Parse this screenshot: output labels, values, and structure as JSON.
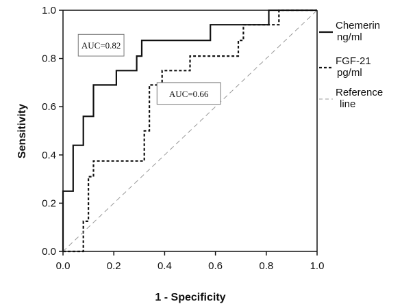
{
  "chart_data": {
    "type": "line",
    "title": "",
    "xlabel": "1 - Specificity",
    "ylabel": "Sensitivity",
    "xlim": [
      0,
      1
    ],
    "ylim": [
      0,
      1
    ],
    "xticks": [
      "0.0",
      "0.2",
      "0.4",
      "0.6",
      "0.8",
      "1.0"
    ],
    "yticks": [
      "0.0",
      "0.2",
      "0.4",
      "0.6",
      "0.8",
      "1.0"
    ],
    "grid": false,
    "legend_position": "right",
    "series": [
      {
        "name_line1": "Chemerin",
        "name_line2": "ng/ml",
        "style": "solid",
        "color": "#111111",
        "points": [
          [
            0,
            0
          ],
          [
            0,
            0.25
          ],
          [
            0.04,
            0.25
          ],
          [
            0.04,
            0.44
          ],
          [
            0.08,
            0.44
          ],
          [
            0.08,
            0.56
          ],
          [
            0.12,
            0.56
          ],
          [
            0.12,
            0.69
          ],
          [
            0.21,
            0.69
          ],
          [
            0.21,
            0.75
          ],
          [
            0.29,
            0.75
          ],
          [
            0.29,
            0.81
          ],
          [
            0.31,
            0.81
          ],
          [
            0.31,
            0.875
          ],
          [
            0.58,
            0.875
          ],
          [
            0.58,
            0.94
          ],
          [
            0.81,
            0.94
          ],
          [
            0.81,
            1.0
          ],
          [
            1.0,
            1.0
          ]
        ]
      },
      {
        "name_line1": "FGF-21",
        "name_line2": "pg/ml",
        "style": "dashed",
        "color": "#111111",
        "points": [
          [
            0,
            0
          ],
          [
            0.08,
            0
          ],
          [
            0.08,
            0.125
          ],
          [
            0.1,
            0.125
          ],
          [
            0.1,
            0.31
          ],
          [
            0.12,
            0.31
          ],
          [
            0.12,
            0.375
          ],
          [
            0.32,
            0.375
          ],
          [
            0.32,
            0.5
          ],
          [
            0.34,
            0.5
          ],
          [
            0.34,
            0.69
          ],
          [
            0.39,
            0.69
          ],
          [
            0.39,
            0.75
          ],
          [
            0.5,
            0.75
          ],
          [
            0.5,
            0.81
          ],
          [
            0.69,
            0.81
          ],
          [
            0.69,
            0.875
          ],
          [
            0.71,
            0.875
          ],
          [
            0.71,
            0.94
          ],
          [
            0.85,
            0.94
          ],
          [
            0.85,
            1.0
          ],
          [
            1.0,
            1.0
          ]
        ]
      },
      {
        "name_line1": "Reference",
        "name_line2": "line",
        "style": "reference",
        "color": "#999999",
        "points": [
          [
            0,
            0
          ],
          [
            1,
            1
          ]
        ]
      }
    ],
    "annotations": [
      {
        "text": "AUC=0.82",
        "x": 0.06,
        "y": 0.81,
        "x2": 0.24,
        "y2": 0.9
      },
      {
        "text": "AUC=0.66",
        "x": 0.37,
        "y": 0.61,
        "x2": 0.62,
        "y2": 0.7
      }
    ]
  }
}
